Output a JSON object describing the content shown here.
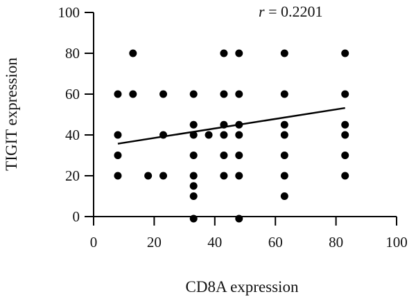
{
  "chart_data": {
    "type": "scatter",
    "title": "",
    "xlabel": "CD8A expression",
    "ylabel": "TIGIT expression",
    "xlim": [
      0,
      100
    ],
    "ylim": [
      0,
      100
    ],
    "xticks": [
      0,
      20,
      40,
      60,
      80,
      100
    ],
    "yticks": [
      0,
      20,
      40,
      60,
      80,
      100
    ],
    "grid": false,
    "annotation": {
      "symbol": "r",
      "text": " = 0.2201"
    },
    "series": [
      {
        "marker_color": "#000000",
        "points": [
          [
            8,
            60
          ],
          [
            8,
            40
          ],
          [
            8,
            30
          ],
          [
            8,
            20
          ],
          [
            13,
            80
          ],
          [
            13,
            60
          ],
          [
            18,
            20
          ],
          [
            23,
            60
          ],
          [
            23,
            40
          ],
          [
            23,
            20
          ],
          [
            33,
            60
          ],
          [
            33,
            45
          ],
          [
            33,
            40
          ],
          [
            33,
            30
          ],
          [
            33,
            20
          ],
          [
            33,
            15
          ],
          [
            33,
            10
          ],
          [
            33,
            -1
          ],
          [
            38,
            40
          ],
          [
            43,
            80
          ],
          [
            43,
            60
          ],
          [
            43,
            45
          ],
          [
            43,
            40
          ],
          [
            43,
            30
          ],
          [
            43,
            20
          ],
          [
            48,
            80
          ],
          [
            48,
            60
          ],
          [
            48,
            45
          ],
          [
            48,
            40
          ],
          [
            48,
            30
          ],
          [
            48,
            20
          ],
          [
            48,
            -1
          ],
          [
            63,
            80
          ],
          [
            63,
            60
          ],
          [
            63,
            45
          ],
          [
            63,
            40
          ],
          [
            63,
            30
          ],
          [
            63,
            20
          ],
          [
            63,
            10
          ],
          [
            83,
            80
          ],
          [
            83,
            60
          ],
          [
            83,
            45
          ],
          [
            83,
            40
          ],
          [
            83,
            30
          ],
          [
            83,
            20
          ]
        ]
      }
    ],
    "trendline": {
      "x": [
        8,
        83
      ],
      "y": [
        35.7,
        53.2
      ],
      "color": "#000000"
    }
  }
}
